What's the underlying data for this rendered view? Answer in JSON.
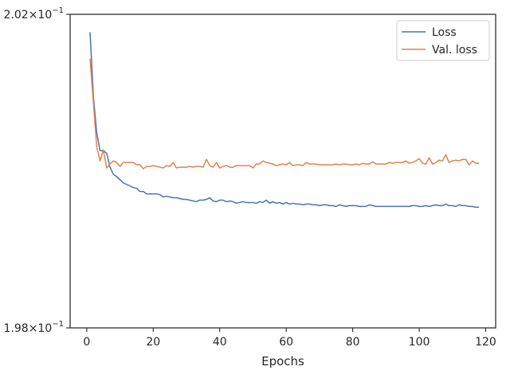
{
  "chart_data": {
    "type": "line",
    "title": "",
    "xlabel": "Epochs",
    "ylabel": "",
    "xlim": [
      -5,
      123
    ],
    "ylim": [
      0.198,
      0.202
    ],
    "y_scale": "log",
    "grid": false,
    "legend_placement": "top-right",
    "x_ticks": [
      0,
      20,
      40,
      60,
      80,
      100,
      120
    ],
    "x_tick_labels": [
      "0",
      "20",
      "40",
      "60",
      "80",
      "100",
      "120"
    ],
    "y_ticks": [
      0.202,
      0.198
    ],
    "y_tick_labels": [
      {
        "base": "2.02",
        "exp": "−1"
      },
      {
        "base": "1.98",
        "exp": "−1"
      }
    ],
    "x": [
      1,
      2,
      3,
      4,
      5,
      6,
      7,
      8,
      9,
      10,
      11,
      12,
      13,
      14,
      15,
      16,
      17,
      18,
      19,
      20,
      21,
      22,
      23,
      24,
      25,
      26,
      27,
      28,
      29,
      30,
      31,
      32,
      33,
      34,
      35,
      36,
      37,
      38,
      39,
      40,
      41,
      42,
      43,
      44,
      45,
      46,
      47,
      48,
      49,
      50,
      51,
      52,
      53,
      54,
      55,
      56,
      57,
      58,
      59,
      60,
      61,
      62,
      63,
      64,
      65,
      66,
      67,
      68,
      69,
      70,
      71,
      72,
      73,
      74,
      75,
      76,
      77,
      78,
      79,
      80,
      81,
      82,
      83,
      84,
      85,
      86,
      87,
      88,
      89,
      90,
      91,
      92,
      93,
      94,
      95,
      96,
      97,
      98,
      99,
      100,
      101,
      102,
      103,
      104,
      105,
      106,
      107,
      108,
      109,
      110,
      111,
      112,
      113,
      114,
      115,
      116,
      117,
      118
    ],
    "series": [
      {
        "name": "Loss",
        "color": "#4c72b0",
        "values": [
          0.20177,
          0.20094,
          0.20048,
          0.20025,
          0.20025,
          0.20022,
          0.20004,
          0.19995,
          0.19992,
          0.19988,
          0.19984,
          0.19982,
          0.1998,
          0.19978,
          0.19977,
          0.19973,
          0.19973,
          0.1997,
          0.1997,
          0.1997,
          0.1997,
          0.19969,
          0.19966,
          0.19967,
          0.19966,
          0.19965,
          0.19965,
          0.19964,
          0.19963,
          0.19963,
          0.19962,
          0.19961,
          0.1996,
          0.19962,
          0.19962,
          0.19963,
          0.19965,
          0.19961,
          0.1996,
          0.19962,
          0.19962,
          0.1996,
          0.19961,
          0.1996,
          0.19958,
          0.19959,
          0.1996,
          0.19959,
          0.19959,
          0.19959,
          0.19958,
          0.1996,
          0.19959,
          0.19962,
          0.19958,
          0.1996,
          0.19958,
          0.19959,
          0.19957,
          0.19959,
          0.19957,
          0.19958,
          0.19957,
          0.19957,
          0.19956,
          0.19957,
          0.19957,
          0.19956,
          0.19956,
          0.19955,
          0.19956,
          0.19956,
          0.19955,
          0.19955,
          0.19954,
          0.19956,
          0.19955,
          0.19954,
          0.19955,
          0.19955,
          0.19955,
          0.19954,
          0.19954,
          0.19954,
          0.19956,
          0.19955,
          0.19954,
          0.19954,
          0.19954,
          0.19954,
          0.19954,
          0.19954,
          0.19954,
          0.19954,
          0.19954,
          0.19954,
          0.19954,
          0.19955,
          0.19955,
          0.19954,
          0.19954,
          0.19955,
          0.19954,
          0.19955,
          0.19956,
          0.19955,
          0.19955,
          0.19957,
          0.19955,
          0.19955,
          0.19954,
          0.19956,
          0.19955,
          0.19955,
          0.19954,
          0.19954,
          0.19953,
          0.19953
        ]
      },
      {
        "name": "Val. loss",
        "color": "#dd8452",
        "values": [
          0.20143,
          0.20086,
          0.2003,
          0.20012,
          0.20026,
          0.20003,
          0.20008,
          0.20012,
          0.2001,
          0.20005,
          0.2001,
          0.2001,
          0.2001,
          0.2001,
          0.20007,
          0.20007,
          0.20002,
          0.20005,
          0.20005,
          0.20006,
          0.20005,
          0.20004,
          0.20003,
          0.20006,
          0.20005,
          0.2001,
          0.20003,
          0.20004,
          0.20004,
          0.20004,
          0.20005,
          0.20004,
          0.20005,
          0.20005,
          0.20004,
          0.20014,
          0.20006,
          0.20004,
          0.2001,
          0.20003,
          0.20005,
          0.20006,
          0.20004,
          0.20004,
          0.20006,
          0.20006,
          0.20006,
          0.20006,
          0.20006,
          0.20003,
          0.20008,
          0.20008,
          0.20012,
          0.2001,
          0.20009,
          0.20008,
          0.20006,
          0.20007,
          0.20008,
          0.20007,
          0.2001,
          0.20006,
          0.20007,
          0.20007,
          0.20006,
          0.2001,
          0.20008,
          0.20008,
          0.20008,
          0.20007,
          0.20007,
          0.20007,
          0.20007,
          0.20007,
          0.20008,
          0.20007,
          0.20008,
          0.20008,
          0.20007,
          0.20007,
          0.20008,
          0.20007,
          0.20009,
          0.20008,
          0.20008,
          0.20011,
          0.20008,
          0.20008,
          0.20008,
          0.20008,
          0.2001,
          0.20009,
          0.2001,
          0.2001,
          0.2001,
          0.20012,
          0.20009,
          0.2001,
          0.20012,
          0.20015,
          0.20009,
          0.20008,
          0.20016,
          0.20008,
          0.2001,
          0.20013,
          0.20012,
          0.2002,
          0.2001,
          0.20012,
          0.20013,
          0.20012,
          0.20014,
          0.20014,
          0.20007,
          0.20012,
          0.20009,
          0.20009
        ]
      }
    ]
  }
}
